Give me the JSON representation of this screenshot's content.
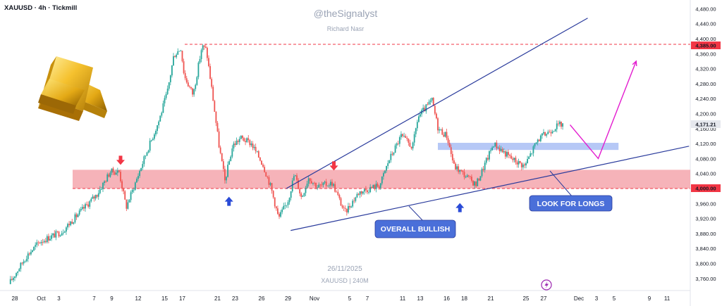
{
  "header": {
    "symbol_line": "XAUUSD · 4h · Tickmill"
  },
  "watermark": {
    "handle": "@theSignalyst",
    "author": "Richard Nasr",
    "date": "26/11/2025",
    "symbol": "XAUUSD | 240M"
  },
  "colors": {
    "up": "#26a69a",
    "down": "#ef5350",
    "trendline": "#2a3b9c",
    "zone_red": "#f4a6ad",
    "zone_blue": "#aec2f5",
    "projection": "#e31ccf",
    "label_bg": "#4a6fd9",
    "red_level": "#f23645"
  },
  "annotations": {
    "look_for_longs": "LOOK FOR LONGS",
    "overall_bullish": "OVERALL BULLISH",
    "level_top": "4,385.00",
    "level_bottom": "4,000.00",
    "current_price": "4,171.21"
  },
  "chart_data": {
    "type": "candlestick",
    "symbol": "XAUUSD",
    "timeframe": "4h",
    "y_range": [
      3730,
      4500
    ],
    "y_ticks": [
      3760,
      3800,
      3840,
      3880,
      3920,
      3960,
      4000,
      4040,
      4080,
      4120,
      4160,
      4200,
      4240,
      4280,
      4320,
      4360,
      4400,
      4440,
      4480
    ],
    "y_tick_labels": [
      "3,760.00",
      "3,800.00",
      "3,840.00",
      "3,880.00",
      "3,920.00",
      "3,960.00",
      "4,000.00",
      "4,040.00",
      "4,080.00",
      "4,120.00",
      "4,160.00",
      "4,200.00",
      "4,240.00",
      "4,280.00",
      "4,320.00",
      "4,360.00",
      "4,400.00",
      "4,440.00",
      "4,480.00"
    ],
    "x_ticks": [
      "28",
      "Oct",
      "3",
      "7",
      "9",
      "12",
      "15",
      "17",
      "21",
      "23",
      "26",
      "29",
      "Nov",
      "5",
      "7",
      "11",
      "13",
      "16",
      "18",
      "21",
      "25",
      "27",
      "Dec",
      "3",
      "5",
      "9",
      "11"
    ],
    "x_tick_days": [
      -3,
      0,
      2,
      6,
      8,
      11,
      14,
      16,
      20,
      22,
      25,
      28,
      31,
      35,
      37,
      41,
      43,
      46,
      48,
      51,
      55,
      57,
      61,
      63,
      65,
      69,
      71
    ],
    "price_path": [
      {
        "day": -3.5,
        "price": 3745
      },
      {
        "day": -1.5,
        "price": 3820
      },
      {
        "day": 0,
        "price": 3858
      },
      {
        "day": 2.5,
        "price": 3885
      },
      {
        "day": 4.5,
        "price": 3935
      },
      {
        "day": 6.5,
        "price": 3985
      },
      {
        "day": 8,
        "price": 4045
      },
      {
        "day": 9,
        "price": 4045
      },
      {
        "day": 9.8,
        "price": 3950
      },
      {
        "day": 10.6,
        "price": 4000
      },
      {
        "day": 12,
        "price": 4090
      },
      {
        "day": 13.5,
        "price": 4180
      },
      {
        "day": 14.5,
        "price": 4260
      },
      {
        "day": 15.2,
        "price": 4355
      },
      {
        "day": 16,
        "price": 4375
      },
      {
        "day": 16.4,
        "price": 4300
      },
      {
        "day": 17.4,
        "price": 4250
      },
      {
        "day": 18.4,
        "price": 4380
      },
      {
        "day": 18.9,
        "price": 4370
      },
      {
        "day": 19.6,
        "price": 4250
      },
      {
        "day": 20.3,
        "price": 4120
      },
      {
        "day": 21,
        "price": 4020
      },
      {
        "day": 21.9,
        "price": 4115
      },
      {
        "day": 22.8,
        "price": 4135
      },
      {
        "day": 24,
        "price": 4120
      },
      {
        "day": 25.3,
        "price": 4065
      },
      {
        "day": 26.2,
        "price": 4005
      },
      {
        "day": 27.1,
        "price": 3920
      },
      {
        "day": 28.2,
        "price": 3970
      },
      {
        "day": 28.9,
        "price": 4040
      },
      {
        "day": 29.7,
        "price": 3975
      },
      {
        "day": 30.5,
        "price": 4030
      },
      {
        "day": 31.5,
        "price": 4005
      },
      {
        "day": 33.2,
        "price": 4015
      },
      {
        "day": 34.6,
        "price": 3935
      },
      {
        "day": 36.2,
        "price": 3990
      },
      {
        "day": 38.6,
        "price": 4010
      },
      {
        "day": 39.6,
        "price": 4075
      },
      {
        "day": 41,
        "price": 4140
      },
      {
        "day": 42.3,
        "price": 4110
      },
      {
        "day": 42.9,
        "price": 4190
      },
      {
        "day": 44.5,
        "price": 4235
      },
      {
        "day": 45.2,
        "price": 4160
      },
      {
        "day": 46.2,
        "price": 4140
      },
      {
        "day": 47,
        "price": 4060
      },
      {
        "day": 48.5,
        "price": 4030
      },
      {
        "day": 49.5,
        "price": 4010
      },
      {
        "day": 51.5,
        "price": 4120
      },
      {
        "day": 53.5,
        "price": 4080
      },
      {
        "day": 55,
        "price": 4060
      },
      {
        "day": 56.5,
        "price": 4130
      },
      {
        "day": 58.5,
        "price": 4165
      },
      {
        "day": 59.2,
        "price": 4172
      }
    ],
    "red_zone": {
      "from": 4000,
      "to": 4050
    },
    "blue_zone": {
      "from_day": 45,
      "to_day": 65.5,
      "from": 4103,
      "to": 4122
    },
    "level_top_price": 4385,
    "level_bottom_price": 4000,
    "current_price": 4171.21,
    "trendlines": [
      {
        "name": "upper",
        "from": {
          "day": 27.8,
          "price": 4000
        },
        "to": {
          "day": 62,
          "price": 4455
        }
      },
      {
        "name": "lower",
        "from": {
          "day": 28.3,
          "price": 3888
        },
        "to": {
          "day": 73.5,
          "price": 4113
        }
      }
    ],
    "projection_path": [
      {
        "day": 60,
        "price": 4170
      },
      {
        "day": 63.2,
        "price": 4080
      },
      {
        "day": 67.5,
        "price": 4340
      }
    ],
    "markers": [
      {
        "type": "sell",
        "day": 9,
        "price": 4050
      },
      {
        "type": "buy",
        "day": 21.3,
        "price": 3997
      },
      {
        "type": "sell",
        "day": 33.2,
        "price": 4035
      },
      {
        "type": "buy",
        "day": 47.5,
        "price": 3980
      }
    ]
  }
}
